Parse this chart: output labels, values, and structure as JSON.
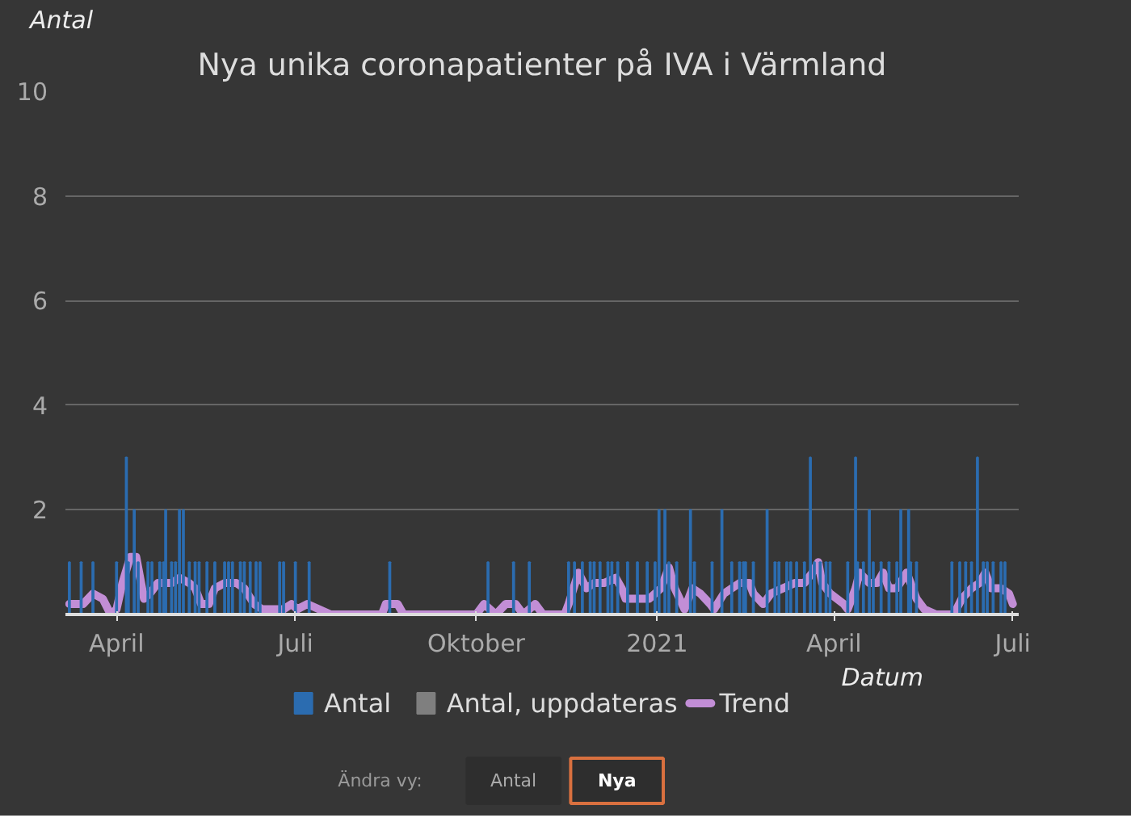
{
  "chart_data": {
    "type": "bar",
    "title": "Nya unika coronapatienter på IVA i Värmland",
    "xlabel": "Datum",
    "ylabel": "Antal",
    "xlim": [
      "2020-03-06",
      "2021-07-04"
    ],
    "xticks": [
      {
        "value": "2020-04-01",
        "label": "April"
      },
      {
        "value": "2020-07-01",
        "label": "Juli"
      },
      {
        "value": "2020-10-01",
        "label": "Oktober"
      },
      {
        "value": "2021-01-01",
        "label": "2021"
      },
      {
        "value": "2021-04-01",
        "label": "April"
      },
      {
        "value": "2021-07-01",
        "label": "Juli"
      }
    ],
    "ylim": [
      0,
      10
    ],
    "yticks": [
      2,
      4,
      6,
      8,
      10
    ],
    "grid": "y",
    "legend": "bottom",
    "series": [
      {
        "name": "Antal",
        "color": "#2b6cb0",
        "x": [
          "2020-03-08",
          "2020-03-14",
          "2020-03-20",
          "2020-04-01",
          "2020-04-06",
          "2020-04-07",
          "2020-04-10",
          "2020-04-12",
          "2020-04-17",
          "2020-04-19",
          "2020-04-23",
          "2020-04-25",
          "2020-04-26",
          "2020-04-29",
          "2020-05-01",
          "2020-05-03",
          "2020-05-05",
          "2020-05-08",
          "2020-05-11",
          "2020-05-13",
          "2020-05-17",
          "2020-05-21",
          "2020-05-26",
          "2020-05-28",
          "2020-05-30",
          "2020-06-03",
          "2020-06-05",
          "2020-06-08",
          "2020-06-11",
          "2020-06-13",
          "2020-06-23",
          "2020-06-25",
          "2020-07-01",
          "2020-07-08",
          "2020-08-18",
          "2020-10-07",
          "2020-10-20",
          "2020-10-28",
          "2020-11-17",
          "2020-11-20",
          "2020-11-24",
          "2020-11-28",
          "2020-11-30",
          "2020-12-03",
          "2020-12-07",
          "2020-12-09",
          "2020-12-12",
          "2020-12-17",
          "2020-12-22",
          "2020-12-27",
          "2020-12-31",
          "2021-01-02",
          "2021-01-05",
          "2021-01-07",
          "2021-01-11",
          "2021-01-18",
          "2021-01-20",
          "2021-01-29",
          "2021-02-03",
          "2021-02-08",
          "2021-02-12",
          "2021-02-14",
          "2021-02-15",
          "2021-02-19",
          "2021-02-26",
          "2021-03-02",
          "2021-03-04",
          "2021-03-08",
          "2021-03-10",
          "2021-03-13",
          "2021-03-17",
          "2021-03-20",
          "2021-03-22",
          "2021-03-25",
          "2021-03-28",
          "2021-03-30",
          "2021-04-08",
          "2021-04-12",
          "2021-04-13",
          "2021-04-16",
          "2021-04-19",
          "2021-04-21",
          "2021-04-25",
          "2021-04-29",
          "2021-05-03",
          "2021-05-05",
          "2021-05-09",
          "2021-05-10",
          "2021-05-13",
          "2021-05-31",
          "2021-06-04",
          "2021-06-07",
          "2021-06-10",
          "2021-06-13",
          "2021-06-16",
          "2021-06-18",
          "2021-06-21",
          "2021-06-25",
          "2021-06-27"
        ],
        "values": [
          1,
          1,
          1,
          1,
          3,
          1,
          2,
          1,
          1,
          1,
          1,
          1,
          2,
          1,
          1,
          2,
          2,
          1,
          1,
          1,
          1,
          1,
          1,
          1,
          1,
          1,
          1,
          1,
          1,
          1,
          1,
          1,
          1,
          1,
          1,
          1,
          1,
          1,
          1,
          1,
          1,
          1,
          1,
          1,
          1,
          1,
          1,
          1,
          1,
          1,
          1,
          2,
          2,
          1,
          1,
          2,
          1,
          1,
          2,
          1,
          1,
          1,
          1,
          1,
          2,
          1,
          1,
          1,
          1,
          1,
          1,
          3,
          1,
          1,
          1,
          1,
          1,
          3,
          1,
          1,
          2,
          1,
          1,
          1,
          1,
          2,
          2,
          1,
          1,
          1,
          1,
          1,
          1,
          3,
          1,
          1,
          1,
          1,
          1
        ]
      },
      {
        "name": "Antal, uppdateras",
        "color": "#7f7f7f"
      },
      {
        "name": "Trend",
        "type": "line",
        "color": "#c28ed6",
        "x": [
          "2020-03-08",
          "2020-03-15",
          "2020-03-20",
          "2020-03-25",
          "2020-03-29",
          "2020-04-01",
          "2020-04-04",
          "2020-04-08",
          "2020-04-11",
          "2020-04-15",
          "2020-04-18",
          "2020-04-22",
          "2020-04-25",
          "2020-04-29",
          "2020-05-03",
          "2020-05-08",
          "2020-05-11",
          "2020-05-14",
          "2020-05-18",
          "2020-05-21",
          "2020-05-26",
          "2020-06-01",
          "2020-06-05",
          "2020-06-10",
          "2020-06-14",
          "2020-06-20",
          "2020-06-25",
          "2020-06-29",
          "2020-07-02",
          "2020-07-07",
          "2020-07-13",
          "2020-07-19",
          "2020-08-14",
          "2020-08-16",
          "2020-08-22",
          "2020-08-25",
          "2020-10-01",
          "2020-10-05",
          "2020-10-11",
          "2020-10-16",
          "2020-10-21",
          "2020-10-25",
          "2020-10-31",
          "2020-11-04",
          "2020-11-15",
          "2020-11-17",
          "2020-11-22",
          "2020-11-26",
          "2020-11-30",
          "2020-12-05",
          "2020-12-11",
          "2020-12-14",
          "2020-12-16",
          "2020-12-22",
          "2020-12-28",
          "2021-01-03",
          "2021-01-07",
          "2021-01-10",
          "2021-01-15",
          "2021-01-19",
          "2021-01-23",
          "2021-01-28",
          "2021-01-30",
          "2021-02-04",
          "2021-02-08",
          "2021-02-12",
          "2021-02-17",
          "2021-02-19",
          "2021-02-24",
          "2021-02-28",
          "2021-03-06",
          "2021-03-12",
          "2021-03-17",
          "2021-03-21",
          "2021-03-24",
          "2021-03-26",
          "2021-03-30",
          "2021-04-06",
          "2021-04-08",
          "2021-04-12",
          "2021-04-14",
          "2021-04-19",
          "2021-04-23",
          "2021-04-26",
          "2021-04-29",
          "2021-05-03",
          "2021-05-08",
          "2021-05-10",
          "2021-05-13",
          "2021-05-17",
          "2021-05-23",
          "2021-06-01",
          "2021-06-05",
          "2021-06-10",
          "2021-06-14",
          "2021-06-17",
          "2021-06-20",
          "2021-06-25",
          "2021-06-29",
          "2021-07-01"
        ],
        "values": [
          0.2,
          0.2,
          0.4,
          0.3,
          0,
          0.1,
          0.6,
          1.1,
          1.1,
          0.3,
          0.4,
          0.6,
          0.6,
          0.6,
          0.7,
          0.6,
          0.5,
          0.2,
          0.2,
          0.5,
          0.6,
          0.6,
          0.5,
          0.2,
          0.1,
          0.1,
          0.1,
          0.2,
          0.1,
          0.2,
          0.1,
          0,
          0,
          0.2,
          0.2,
          0,
          0,
          0.2,
          0,
          0.2,
          0.2,
          0,
          0.2,
          0,
          0,
          0.2,
          0.8,
          0.5,
          0.6,
          0.6,
          0.7,
          0.5,
          0.3,
          0.3,
          0.3,
          0.5,
          0.9,
          0.5,
          0.1,
          0.5,
          0.4,
          0.2,
          0.1,
          0.4,
          0.5,
          0.6,
          0.6,
          0.4,
          0.2,
          0.4,
          0.5,
          0.6,
          0.6,
          0.8,
          1.0,
          0.6,
          0.4,
          0.2,
          0.1,
          0.5,
          0.8,
          0.6,
          0.6,
          0.8,
          0.5,
          0.5,
          0.8,
          0.6,
          0.3,
          0.1,
          0,
          0,
          0.3,
          0.5,
          0.6,
          0.8,
          0.5,
          0.5,
          0.4,
          0.2
        ]
      }
    ],
    "annotations": [
      "Ändra vy:",
      "Antal",
      "Nya"
    ]
  }
}
